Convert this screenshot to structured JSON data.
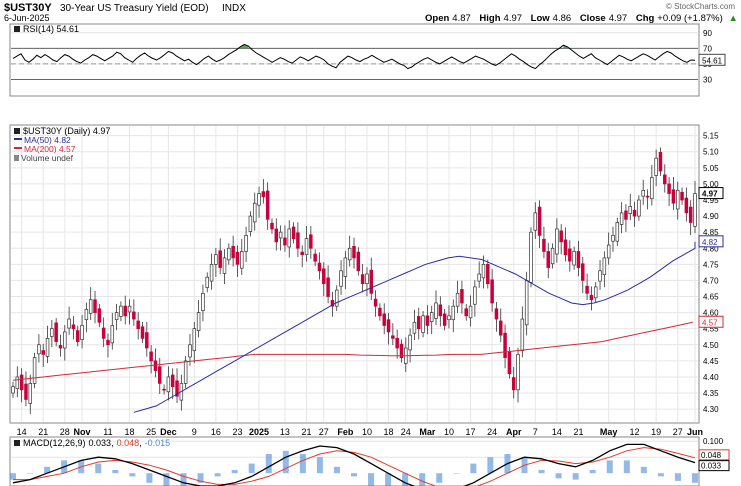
{
  "header": {
    "symbol": "$UST30Y",
    "name": "30-Year US Treasury Yield (EOD)",
    "exchange": "INDX",
    "date": "6-Jun-2025",
    "copyright": "© StockCharts.com",
    "ohlc": {
      "open_label": "Open",
      "open": "4.87",
      "high_label": "High",
      "high": "4.97",
      "low_label": "Low",
      "low": "4.86",
      "close_label": "Close",
      "close": "4.97",
      "chg_label": "Chg",
      "chg": "+0.09 (+1.87%)",
      "chg_arrow": "▲"
    }
  },
  "colors": {
    "price_up": "#c8c8c8",
    "price_down": "#c8003c",
    "ma50": "#2c2c9c",
    "ma200": "#d02a3a",
    "rsi": "#000000",
    "rsi_fill": "#3a8a3a",
    "macd": "#000000",
    "macd_signal": "#e23a2a",
    "macd_hist": "#4a8ad8",
    "grid": "#e6e6e6",
    "border": "#888888"
  },
  "chart_data": [
    {
      "type": "line",
      "panel": "rsi",
      "legend": "RSI(14) 54.61",
      "ylim": [
        10,
        100
      ],
      "y_ticks": [
        "90",
        "70",
        "50",
        "30"
      ],
      "y_tick_values": [
        90,
        70,
        50,
        30
      ],
      "reference_lines": [
        70,
        50,
        30
      ],
      "last_value_label": "54.61",
      "last_value": 54.61,
      "series": [
        {
          "values": [
            57,
            60,
            63,
            55,
            52,
            56,
            61,
            58,
            62,
            59,
            55,
            53,
            58,
            62,
            60,
            56,
            53,
            51,
            55,
            58,
            62,
            60,
            57,
            54,
            57,
            60,
            65,
            63,
            58,
            55,
            52,
            57,
            61,
            64,
            60,
            57,
            55,
            58,
            62,
            66,
            64,
            60,
            57,
            54,
            56,
            52,
            49,
            53,
            57,
            60,
            56,
            53,
            55,
            58,
            62,
            65,
            68,
            72,
            75,
            73,
            68,
            64,
            61,
            58,
            55,
            52,
            55,
            58,
            56,
            53,
            51,
            55,
            59,
            57,
            54,
            57,
            60,
            58,
            55,
            50,
            47,
            45,
            52,
            56,
            60,
            58,
            55,
            53,
            56,
            58,
            61,
            58,
            55,
            52,
            54,
            56,
            53,
            50,
            48,
            44,
            46,
            50,
            53,
            56,
            58,
            55,
            52,
            50,
            53,
            56,
            59,
            56,
            53,
            51,
            54,
            57,
            60,
            58,
            56,
            53,
            50,
            48,
            51,
            55,
            59,
            63,
            60,
            56,
            53,
            49,
            46,
            44,
            49,
            53,
            58,
            63,
            67,
            70,
            74,
            72,
            68,
            64,
            60,
            57,
            60,
            63,
            58,
            55,
            52,
            49,
            53,
            57,
            61,
            59,
            56,
            54,
            57,
            60,
            63,
            61,
            58,
            55,
            59,
            63,
            66,
            64,
            60,
            57,
            54,
            52,
            55,
            54.61
          ]
        }
      ]
    },
    {
      "type": "line",
      "panel": "price",
      "legend": {
        "price": "$UST30Y (Daily) 4.97",
        "ma50": "MA(50) 4.82",
        "ma200": "MA(200) 4.57",
        "volume": "Volume undef"
      },
      "ylim": [
        4.26,
        5.18
      ],
      "y_ticks": [
        "5.15",
        "5.10",
        "5.05",
        "5.00",
        "4.95",
        "4.90",
        "4.85",
        "4.80",
        "4.75",
        "4.70",
        "4.65",
        "4.60",
        "4.55",
        "4.50",
        "4.45",
        "4.40",
        "4.35",
        "4.30"
      ],
      "y_tick_values": [
        5.15,
        5.1,
        5.05,
        5.0,
        4.95,
        4.9,
        4.85,
        4.8,
        4.75,
        4.7,
        4.65,
        4.6,
        4.55,
        4.5,
        4.45,
        4.4,
        4.35,
        4.3
      ],
      "x_labels": [
        {
          "text": "14",
          "i": 2
        },
        {
          "text": "21",
          "i": 7
        },
        {
          "text": "28",
          "i": 12
        },
        {
          "text": "Nov",
          "i": 16,
          "bold": true
        },
        {
          "text": "11",
          "i": 22
        },
        {
          "text": "18",
          "i": 27
        },
        {
          "text": "25",
          "i": 32
        },
        {
          "text": "Dec",
          "i": 36,
          "bold": true
        },
        {
          "text": "9",
          "i": 42
        },
        {
          "text": "16",
          "i": 47
        },
        {
          "text": "23",
          "i": 52
        },
        {
          "text": "2025",
          "i": 57,
          "bold": true
        },
        {
          "text": "13",
          "i": 63
        },
        {
          "text": "21",
          "i": 68
        },
        {
          "text": "27",
          "i": 72
        },
        {
          "text": "Feb",
          "i": 77,
          "bold": true
        },
        {
          "text": "10",
          "i": 82
        },
        {
          "text": "18",
          "i": 87
        },
        {
          "text": "24",
          "i": 91
        },
        {
          "text": "Mar",
          "i": 96,
          "bold": true
        },
        {
          "text": "10",
          "i": 101
        },
        {
          "text": "17",
          "i": 106
        },
        {
          "text": "24",
          "i": 111
        },
        {
          "text": "Apr",
          "i": 116,
          "bold": true
        },
        {
          "text": "7",
          "i": 121
        },
        {
          "text": "14",
          "i": 126
        },
        {
          "text": "21",
          "i": 131
        },
        {
          "text": "May",
          "i": 138,
          "bold": true
        },
        {
          "text": "12",
          "i": 144
        },
        {
          "text": "19",
          "i": 149
        },
        {
          "text": "27",
          "i": 154
        },
        {
          "text": "Jun",
          "i": 158,
          "bold": true
        }
      ],
      "close_values": [
        4.37,
        4.4,
        4.36,
        4.33,
        4.38,
        4.46,
        4.5,
        4.47,
        4.52,
        4.55,
        4.51,
        4.49,
        4.54,
        4.58,
        4.55,
        4.51,
        4.56,
        4.61,
        4.64,
        4.6,
        4.57,
        4.52,
        4.5,
        4.56,
        4.6,
        4.62,
        4.59,
        4.62,
        4.58,
        4.55,
        4.52,
        4.49,
        4.45,
        4.42,
        4.38,
        4.36,
        4.4,
        4.37,
        4.34,
        4.38,
        4.45,
        4.5,
        4.55,
        4.6,
        4.66,
        4.71,
        4.75,
        4.78,
        4.74,
        4.77,
        4.8,
        4.77,
        4.75,
        4.79,
        4.84,
        4.9,
        4.94,
        4.97,
        4.96,
        4.89,
        4.86,
        4.82,
        4.85,
        4.81,
        4.86,
        4.83,
        4.8,
        4.78,
        4.83,
        4.8,
        4.76,
        4.73,
        4.69,
        4.65,
        4.62,
        4.67,
        4.73,
        4.77,
        4.8,
        4.77,
        4.73,
        4.69,
        4.72,
        4.66,
        4.62,
        4.59,
        4.56,
        4.54,
        4.52,
        4.49,
        4.46,
        4.49,
        4.53,
        4.57,
        4.55,
        4.59,
        4.56,
        4.6,
        4.63,
        4.59,
        4.56,
        4.59,
        4.62,
        4.66,
        4.63,
        4.59,
        4.62,
        4.68,
        4.72,
        4.75,
        4.69,
        4.63,
        4.58,
        4.53,
        4.46,
        4.41,
        4.36,
        4.47,
        4.58,
        4.7,
        4.85,
        4.91,
        4.84,
        4.79,
        4.74,
        4.8,
        4.86,
        4.82,
        4.78,
        4.76,
        4.79,
        4.74,
        4.7,
        4.66,
        4.64,
        4.68,
        4.73,
        4.77,
        4.81,
        4.84,
        4.88,
        4.91,
        4.89,
        4.93,
        4.9,
        4.95,
        4.98,
        4.96,
        5.02,
        5.08,
        5.04,
        5.0,
        4.97,
        4.94,
        4.98,
        4.95,
        4.91,
        4.88,
        4.97
      ],
      "ma50_values": [
        4.29,
        4.3,
        4.31,
        4.33,
        4.35,
        4.37,
        4.39,
        4.41,
        4.43,
        4.45,
        4.47,
        4.49,
        4.51,
        4.53,
        4.55,
        4.57,
        4.59,
        4.61,
        4.63,
        4.645,
        4.66,
        4.675,
        4.69,
        4.705,
        4.72,
        4.735,
        4.75,
        4.76,
        4.77,
        4.775,
        4.77,
        4.765,
        4.75,
        4.735,
        4.72,
        4.7,
        4.68,
        4.66,
        4.645,
        4.63,
        4.625,
        4.63,
        4.64,
        4.655,
        4.67,
        4.69,
        4.71,
        4.735,
        4.76,
        4.78,
        4.8,
        4.82
      ],
      "ma50_index_start": 28,
      "ma50_index_step": 2.6,
      "ma200_values": [
        4.39,
        4.395,
        4.4,
        4.405,
        4.41,
        4.415,
        4.42,
        4.425,
        4.43,
        4.435,
        4.44,
        4.445,
        4.45,
        4.455,
        4.46,
        4.465,
        4.47,
        4.47,
        4.47,
        4.47,
        4.47,
        4.47,
        4.47,
        4.468,
        4.467,
        4.466,
        4.466,
        4.467,
        4.468,
        4.47,
        4.47,
        4.47,
        4.475,
        4.48,
        4.485,
        4.49,
        4.495,
        4.5,
        4.505,
        4.51,
        4.52,
        4.53,
        4.54,
        4.55,
        4.56,
        4.57
      ],
      "ma200_index_start": 0,
      "ma200_index_step": 3.5,
      "last_value_labels": [
        {
          "text": "4.97",
          "value": 4.97,
          "style": "boxed-bold"
        },
        {
          "text": "4.82",
          "value": 4.82,
          "style": "boxed-blue"
        },
        {
          "text": "4.57",
          "value": 4.57,
          "style": "boxed-red"
        }
      ]
    },
    {
      "type": "line",
      "panel": "macd",
      "legend": {
        "label": "MACD(12,26,9)",
        "macd": "0.033",
        "signal": "0.048",
        "hist": "-0.015"
      },
      "ylim": [
        -0.04,
        0.11
      ],
      "y_ticks": [
        "0.100",
        "0.050"
      ],
      "y_tick_values": [
        0.1,
        0.05
      ],
      "last_value_labels": [
        {
          "text": "0.048",
          "value": 0.048
        },
        {
          "text": "0.033",
          "value": 0.033
        }
      ],
      "macd_values": [
        -0.03,
        -0.02,
        0.0,
        0.02,
        0.04,
        0.05,
        0.045,
        0.03,
        0.01,
        -0.01,
        -0.03,
        -0.04,
        -0.04,
        -0.03,
        -0.01,
        0.02,
        0.05,
        0.07,
        0.085,
        0.08,
        0.06,
        0.03,
        0.0,
        -0.03,
        -0.05,
        -0.06,
        -0.05,
        -0.03,
        0.0,
        0.03,
        0.05,
        0.045,
        0.03,
        0.02,
        0.04,
        0.07,
        0.09,
        0.09,
        0.07,
        0.05,
        0.033
      ],
      "signal_values": [
        -0.02,
        -0.02,
        -0.01,
        0.0,
        0.02,
        0.035,
        0.04,
        0.035,
        0.025,
        0.01,
        -0.01,
        -0.025,
        -0.035,
        -0.035,
        -0.025,
        -0.01,
        0.015,
        0.04,
        0.06,
        0.07,
        0.065,
        0.05,
        0.025,
        0.0,
        -0.025,
        -0.045,
        -0.05,
        -0.045,
        -0.025,
        0.0,
        0.025,
        0.04,
        0.038,
        0.03,
        0.035,
        0.05,
        0.07,
        0.08,
        0.075,
        0.062,
        0.048
      ]
    }
  ]
}
